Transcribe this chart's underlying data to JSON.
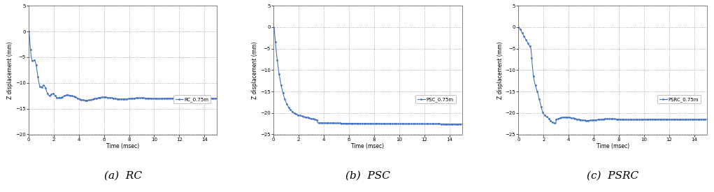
{
  "panels": [
    {
      "label": "(a)  RC",
      "legend": "RC_0.75m",
      "ylim": [
        -20,
        5
      ],
      "yticks": [
        5,
        0,
        -5,
        -10,
        -15,
        -20
      ],
      "curve_shape": "RC"
    },
    {
      "label": "(b)  PSC",
      "legend": "PSC_0.75m",
      "ylim": [
        -25,
        5
      ],
      "yticks": [
        5,
        0,
        -5,
        -10,
        -15,
        -20,
        -25
      ],
      "curve_shape": "PSC"
    },
    {
      "label": "(c)  PSRC",
      "legend": "PSRC_0.75m",
      "ylim": [
        -25,
        5
      ],
      "yticks": [
        5,
        0,
        -5,
        -10,
        -15,
        -20,
        -25
      ],
      "curve_shape": "PSRC"
    }
  ],
  "xlim": [
    0,
    15
  ],
  "xticks": [
    0,
    2,
    4,
    6,
    8,
    10,
    12,
    14
  ],
  "xlabel": "Time (msec)",
  "ylabel": "Z displacement (mm)",
  "line_color": "#4472C4",
  "marker": ".",
  "markersize": 2,
  "linewidth": 0.8,
  "grid_color": "#999999",
  "grid_style": ":",
  "grid_linewidth": 0.6,
  "bg_color": "#ffffff",
  "caption_fontsize": 11,
  "axis_label_fontsize": 5.5,
  "tick_fontsize": 5,
  "legend_fontsize": 5
}
